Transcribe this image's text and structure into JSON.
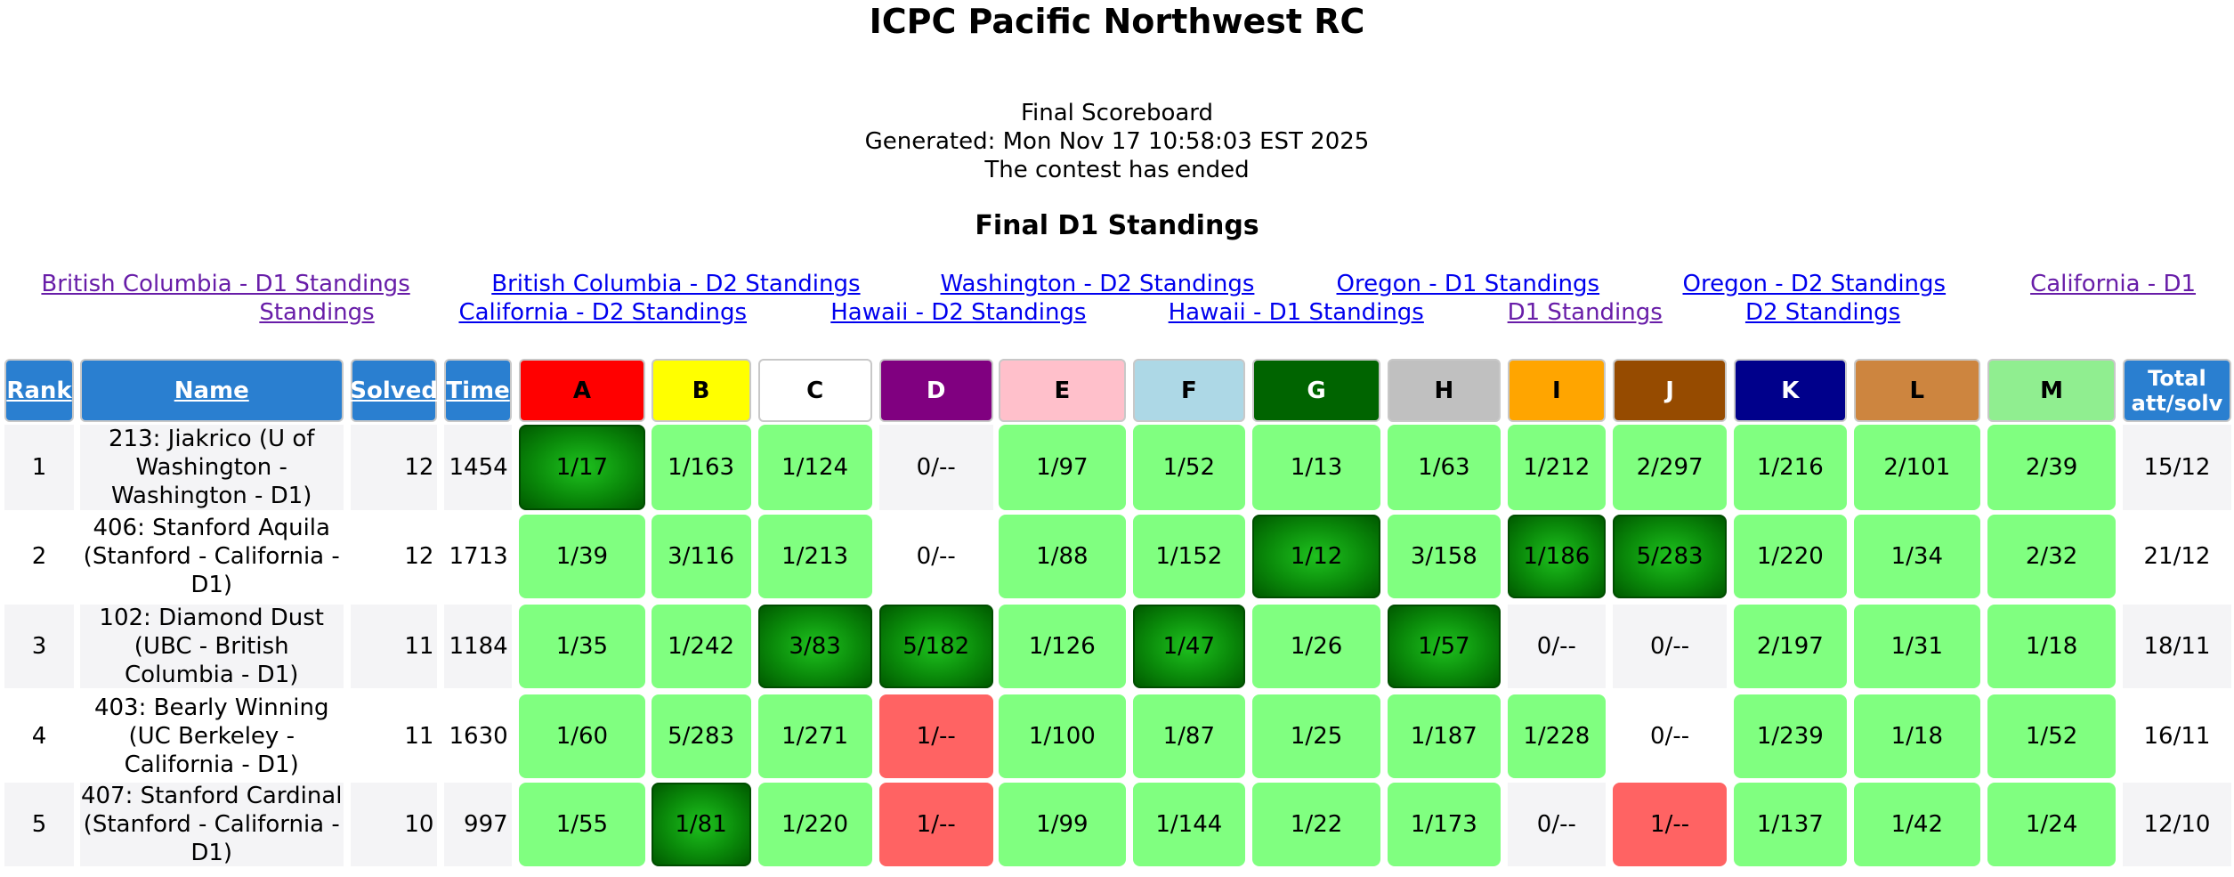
{
  "header": {
    "title": "ICPC Pacific Northwest RC",
    "lines": [
      "Final Scoreboard",
      "Generated: Mon Nov 17 10:58:03 EST 2025",
      "The contest has ended"
    ]
  },
  "section_title": "Final D1 Standings",
  "links": [
    {
      "text": "British Columbia - D1 Standings",
      "visited": true
    },
    {
      "text": "British Columbia - D2 Standings",
      "visited": false
    },
    {
      "text": "Washington - D2 Standings",
      "visited": false
    },
    {
      "text": "Oregon - D1 Standings",
      "visited": false
    },
    {
      "text": "Oregon - D2 Standings",
      "visited": false
    },
    {
      "text": "California - D1",
      "visited": true
    },
    {
      "text": "Standings",
      "visited": true
    },
    {
      "text": "California - D2 Standings",
      "visited": false
    },
    {
      "text": "Hawaii - D2 Standings",
      "visited": false
    },
    {
      "text": "Hawaii - D1 Standings",
      "visited": false
    },
    {
      "text": "D1 Standings",
      "visited": true
    },
    {
      "text": "D2 Standings",
      "visited": false
    }
  ],
  "table": {
    "columns": [
      "Rank",
      "Name",
      "Solved",
      "Time"
    ],
    "total_header": "Total att/solv",
    "problems": [
      {
        "label": "A",
        "color": "#ff0000",
        "text_color": "#000000"
      },
      {
        "label": "B",
        "color": "#ffff00",
        "text_color": "#000000"
      },
      {
        "label": "C",
        "color": "#ffffff",
        "text_color": "#000000"
      },
      {
        "label": "D",
        "color": "#800080",
        "text_color": "#ffffff"
      },
      {
        "label": "E",
        "color": "#ffc0cb",
        "text_color": "#000000"
      },
      {
        "label": "F",
        "color": "#add8e6",
        "text_color": "#000000"
      },
      {
        "label": "G",
        "color": "#006400",
        "text_color": "#ffffff"
      },
      {
        "label": "H",
        "color": "#c0c0c0",
        "text_color": "#000000"
      },
      {
        "label": "I",
        "color": "#ffa500",
        "text_color": "#000000"
      },
      {
        "label": "J",
        "color": "#964b00",
        "text_color": "#ffffff"
      },
      {
        "label": "K",
        "color": "#00008b",
        "text_color": "#ffffff"
      },
      {
        "label": "L",
        "color": "#cd853f",
        "text_color": "#000000"
      },
      {
        "label": "M",
        "color": "#90ee90",
        "text_color": "#000000"
      }
    ],
    "rows": [
      {
        "rank": "1",
        "name": "213: Jiakrico (U of Washington - Washington - D1)",
        "solved": "12",
        "time": "1454",
        "cells": [
          {
            "text": "1/17",
            "state": "first"
          },
          {
            "text": "1/163",
            "state": "solved"
          },
          {
            "text": "1/124",
            "state": "solved"
          },
          {
            "text": "0/--",
            "state": "none"
          },
          {
            "text": "1/97",
            "state": "solved"
          },
          {
            "text": "1/52",
            "state": "solved"
          },
          {
            "text": "1/13",
            "state": "solved"
          },
          {
            "text": "1/63",
            "state": "solved"
          },
          {
            "text": "1/212",
            "state": "solved"
          },
          {
            "text": "2/297",
            "state": "solved"
          },
          {
            "text": "1/216",
            "state": "solved"
          },
          {
            "text": "2/101",
            "state": "solved"
          },
          {
            "text": "2/39",
            "state": "solved"
          }
        ],
        "total": "15/12"
      },
      {
        "rank": "2",
        "name": "406: Stanford Aquila (Stanford - California - D1)",
        "solved": "12",
        "time": "1713",
        "cells": [
          {
            "text": "1/39",
            "state": "solved"
          },
          {
            "text": "3/116",
            "state": "solved"
          },
          {
            "text": "1/213",
            "state": "solved"
          },
          {
            "text": "0/--",
            "state": "none"
          },
          {
            "text": "1/88",
            "state": "solved"
          },
          {
            "text": "1/152",
            "state": "solved"
          },
          {
            "text": "1/12",
            "state": "first"
          },
          {
            "text": "3/158",
            "state": "solved"
          },
          {
            "text": "1/186",
            "state": "first"
          },
          {
            "text": "5/283",
            "state": "first"
          },
          {
            "text": "1/220",
            "state": "solved"
          },
          {
            "text": "1/34",
            "state": "solved"
          },
          {
            "text": "2/32",
            "state": "solved"
          }
        ],
        "total": "21/12"
      },
      {
        "rank": "3",
        "name": "102: Diamond Dust (UBC - British Columbia - D1)",
        "solved": "11",
        "time": "1184",
        "cells": [
          {
            "text": "1/35",
            "state": "solved"
          },
          {
            "text": "1/242",
            "state": "solved"
          },
          {
            "text": "3/83",
            "state": "first"
          },
          {
            "text": "5/182",
            "state": "first"
          },
          {
            "text": "1/126",
            "state": "solved"
          },
          {
            "text": "1/47",
            "state": "first"
          },
          {
            "text": "1/26",
            "state": "solved"
          },
          {
            "text": "1/57",
            "state": "first"
          },
          {
            "text": "0/--",
            "state": "none"
          },
          {
            "text": "0/--",
            "state": "none"
          },
          {
            "text": "2/197",
            "state": "solved"
          },
          {
            "text": "1/31",
            "state": "solved"
          },
          {
            "text": "1/18",
            "state": "solved"
          }
        ],
        "total": "18/11"
      },
      {
        "rank": "4",
        "name": "403: Bearly Winning (UC Berkeley - California - D1)",
        "solved": "11",
        "time": "1630",
        "cells": [
          {
            "text": "1/60",
            "state": "solved"
          },
          {
            "text": "5/283",
            "state": "solved"
          },
          {
            "text": "1/271",
            "state": "solved"
          },
          {
            "text": "1/--",
            "state": "failed"
          },
          {
            "text": "1/100",
            "state": "solved"
          },
          {
            "text": "1/87",
            "state": "solved"
          },
          {
            "text": "1/25",
            "state": "solved"
          },
          {
            "text": "1/187",
            "state": "solved"
          },
          {
            "text": "1/228",
            "state": "solved"
          },
          {
            "text": "0/--",
            "state": "none"
          },
          {
            "text": "1/239",
            "state": "solved"
          },
          {
            "text": "1/18",
            "state": "solved"
          },
          {
            "text": "1/52",
            "state": "solved"
          }
        ],
        "total": "16/11"
      },
      {
        "rank": "5",
        "name": "407: Stanford Cardinal (Stanford - California - D1)",
        "solved": "10",
        "time": "997",
        "cells": [
          {
            "text": "1/55",
            "state": "solved"
          },
          {
            "text": "1/81",
            "state": "first"
          },
          {
            "text": "1/220",
            "state": "solved"
          },
          {
            "text": "1/--",
            "state": "failed"
          },
          {
            "text": "1/99",
            "state": "solved"
          },
          {
            "text": "1/144",
            "state": "solved"
          },
          {
            "text": "1/22",
            "state": "solved"
          },
          {
            "text": "1/173",
            "state": "solved"
          },
          {
            "text": "0/--",
            "state": "none"
          },
          {
            "text": "1/--",
            "state": "failed"
          },
          {
            "text": "1/137",
            "state": "solved"
          },
          {
            "text": "1/42",
            "state": "solved"
          },
          {
            "text": "1/24",
            "state": "solved"
          }
        ],
        "total": "12/10"
      }
    ]
  }
}
